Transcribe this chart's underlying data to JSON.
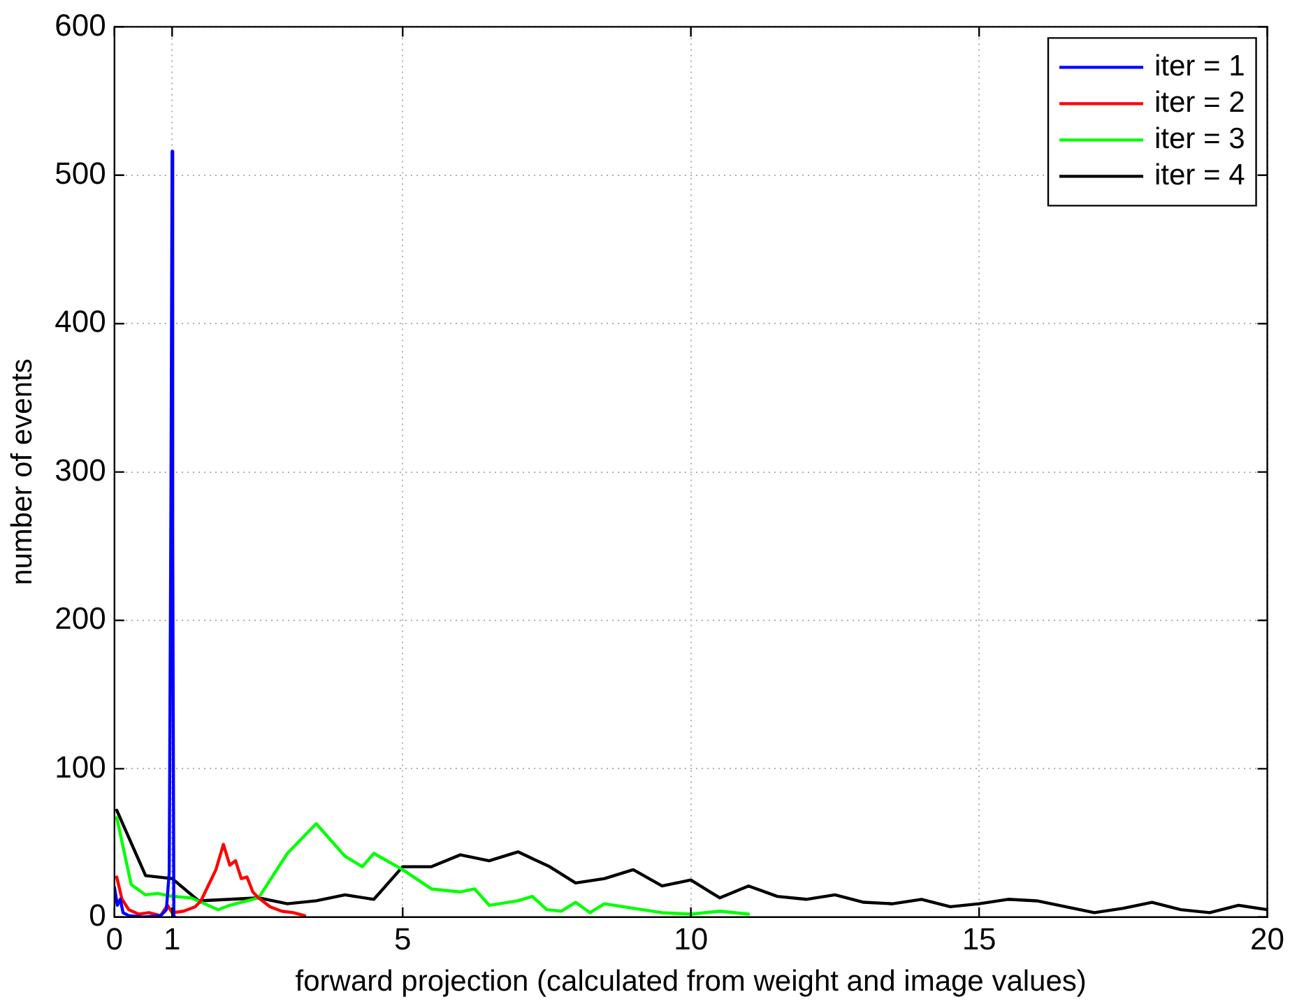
{
  "chart_data": {
    "type": "line",
    "xlabel": "forward projection (calculated from weight and image values)",
    "ylabel": "number of events",
    "xlim": [
      0,
      20
    ],
    "xticks": [
      0,
      1,
      5,
      10,
      15,
      20
    ],
    "ylim": [
      0,
      600
    ],
    "yticks": [
      0,
      100,
      200,
      300,
      400,
      500,
      600
    ],
    "grid": true,
    "legend": "top right",
    "marker": "none",
    "line_style": "solid",
    "series": [
      {
        "name": "iter = 1",
        "color": "#0000ff",
        "x": [
          0,
          0.05,
          0.1,
          0.15,
          0.25,
          0.5,
          0.8,
          0.9,
          0.95,
          0.98,
          1.0,
          1.01,
          1.03,
          1.05
        ],
        "values": [
          20,
          8,
          12,
          3,
          1,
          0,
          1,
          5,
          30,
          280,
          516,
          260,
          0,
          0
        ]
      },
      {
        "name": "iter = 2",
        "color": "#ff0000",
        "x": [
          0.04,
          0.13,
          0.25,
          0.42,
          0.6,
          0.8,
          0.92,
          1.0,
          1.2,
          1.4,
          1.5,
          1.76,
          1.89,
          2.0,
          2.1,
          2.2,
          2.3,
          2.4,
          2.5,
          2.7,
          2.9,
          3.1,
          3.3
        ],
        "values": [
          27,
          12,
          5,
          2,
          3,
          1,
          8,
          3,
          4,
          7,
          11,
          32,
          49,
          35,
          38,
          26,
          27,
          17,
          13,
          7,
          4,
          3,
          1
        ]
      },
      {
        "name": "iter = 3",
        "color": "#00ff00",
        "x": [
          0.04,
          0.29,
          0.54,
          0.75,
          1.0,
          1.33,
          1.8,
          2.0,
          2.5,
          3.0,
          3.5,
          4.0,
          4.3,
          4.5,
          5.0,
          5.5,
          6.0,
          6.25,
          6.5,
          7.0,
          7.25,
          7.5,
          7.75,
          8.0,
          8.25,
          8.5,
          9.0,
          9.5,
          10.0,
          10.5,
          11.0
        ],
        "values": [
          67,
          22,
          15,
          16,
          14,
          13,
          5,
          8,
          13,
          43,
          63,
          41,
          34,
          43,
          32,
          19,
          17,
          19,
          8,
          11,
          14,
          5,
          4,
          10,
          3,
          9,
          6,
          3,
          2,
          4,
          2
        ]
      },
      {
        "name": "iter = 4",
        "color": "#000000",
        "x": [
          0.04,
          0.54,
          1.0,
          1.46,
          2.5,
          3.0,
          3.5,
          4.0,
          4.5,
          5.0,
          5.5,
          6.0,
          6.5,
          7.0,
          7.55,
          8.0,
          8.5,
          9.0,
          9.5,
          10.0,
          10.5,
          11.0,
          11.5,
          12.0,
          12.5,
          13.0,
          13.5,
          14.0,
          14.5,
          15.0,
          15.5,
          16.0,
          16.5,
          17.0,
          17.5,
          18.0,
          18.5,
          19.0,
          19.5,
          20.0
        ],
        "values": [
          72,
          28,
          26,
          11,
          13,
          9,
          11,
          15,
          12,
          34,
          34,
          42,
          38,
          44,
          34,
          23,
          26,
          32,
          21,
          25,
          13,
          21,
          14,
          12,
          15,
          10,
          9,
          12,
          7,
          9,
          12,
          11,
          7,
          3,
          6,
          10,
          5,
          3,
          8,
          5
        ]
      }
    ]
  }
}
